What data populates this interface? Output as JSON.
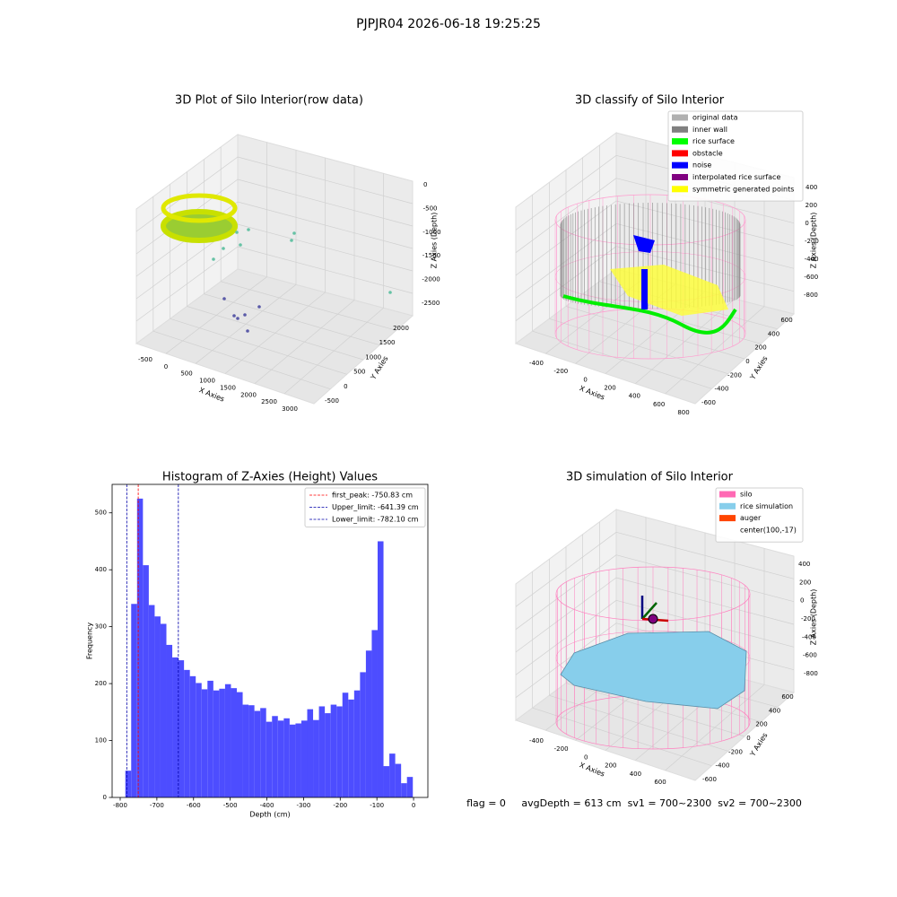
{
  "title": "PJPJR04 2026-06-18 19:25:25",
  "footer": "flag = 0     avgDepth = 613 cm  sv1 = 700~2300  sv2 = 700~2300",
  "chart_data": [
    {
      "type": "scatter3d",
      "title": "3D Plot of Silo Interior(row data)",
      "xlabel": "X Axies",
      "ylabel": "Y Axies",
      "zlabel": "Z Axies (Depth)",
      "xticks": [
        -500,
        0,
        500,
        1000,
        1500,
        2000,
        2500,
        3000
      ],
      "yticks": [
        -500,
        0,
        500,
        1000,
        1500,
        2000
      ],
      "zticks": [
        0,
        -500,
        -1000,
        -1500,
        -2000,
        -2500
      ]
    },
    {
      "type": "scatter3d",
      "title": "3D classify of Silo Interior",
      "xlabel": "X Axies",
      "ylabel": "Y Axies",
      "zlabel": "Z Axies (Depth)",
      "xticks": [
        -400,
        -200,
        0,
        200,
        400,
        600,
        800
      ],
      "yticks": [
        -600,
        -400,
        -200,
        0,
        200,
        400,
        600
      ],
      "zticks": [
        400,
        200,
        0,
        -200,
        -400,
        -600,
        -800
      ],
      "legend": [
        {
          "name": "original data",
          "color": "#b0b0b0"
        },
        {
          "name": "inner wall",
          "color": "#808080"
        },
        {
          "name": "rice surface",
          "color": "#00ff00"
        },
        {
          "name": "obstacle",
          "color": "#ff0000"
        },
        {
          "name": "noise",
          "color": "#0000ff"
        },
        {
          "name": "interpolated rice surface",
          "color": "#800080"
        },
        {
          "name": "symmetric generated points",
          "color": "#ffff00"
        }
      ]
    },
    {
      "type": "histogram",
      "title": "Histogram of Z-Axies (Height) Values",
      "xlabel": "Depth (cm)",
      "ylabel": "Frequency",
      "color": "#4d4dff",
      "bins": [
        -786,
        -770,
        -754,
        -738,
        -722,
        -706,
        -690,
        -674,
        -658,
        -642,
        -626,
        -610,
        -594,
        -578,
        -562,
        -546,
        -530,
        -514,
        -498,
        -482,
        -466,
        -450,
        -434,
        -418,
        -402,
        -386,
        -370,
        -354,
        -338,
        -322,
        -306,
        -290,
        -274,
        -258,
        -242,
        -226,
        -210,
        -194,
        -178,
        -162,
        -146,
        -130,
        -114,
        -98,
        -82,
        -66,
        -50,
        -34,
        -18,
        -2
      ],
      "counts": [
        47,
        340,
        525,
        408,
        338,
        318,
        305,
        268,
        246,
        241,
        224,
        213,
        201,
        190,
        205,
        188,
        191,
        199,
        192,
        185,
        163,
        162,
        152,
        157,
        133,
        143,
        135,
        139,
        128,
        130,
        135,
        155,
        136,
        160,
        148,
        163,
        160,
        184,
        172,
        188,
        220,
        258,
        294,
        450,
        55,
        77,
        59,
        25,
        36
      ],
      "xlim": [
        -822,
        39
      ],
      "ylim": [
        0,
        550
      ],
      "xticks": [
        -800,
        -700,
        -600,
        -500,
        -400,
        -300,
        -200,
        -100,
        0
      ],
      "yticks": [
        0,
        100,
        200,
        300,
        400,
        500
      ],
      "lines": [
        {
          "name": "first_peak: -750.83 cm",
          "value": -750.83,
          "color": "#ff0000"
        },
        {
          "name": "Upper_limit: -641.39 cm",
          "value": -641.39,
          "color": "#0000aa"
        },
        {
          "name": "Lower_limit: -782.10 cm",
          "value": -782.1,
          "color": "#0000aa"
        }
      ],
      "legend_position": "upper right"
    },
    {
      "type": "surface3d",
      "title": "3D simulation of Silo Interior",
      "xlabel": "X Axies",
      "ylabel": "Y Axies",
      "zlabel": "Z Axies (Depth)",
      "xticks": [
        -400,
        -200,
        0,
        200,
        400,
        600
      ],
      "yticks": [
        -600,
        -400,
        -200,
        0,
        200,
        400,
        600
      ],
      "zticks": [
        400,
        200,
        0,
        -200,
        -400,
        -600,
        -800
      ],
      "legend": [
        {
          "name": "silo",
          "color": "#ff69b4"
        },
        {
          "name": "rice simulation",
          "color": "#87ceeb"
        },
        {
          "name": "auger",
          "color": "#ff4500"
        },
        {
          "name": "center(100,-17)"
        }
      ]
    }
  ]
}
